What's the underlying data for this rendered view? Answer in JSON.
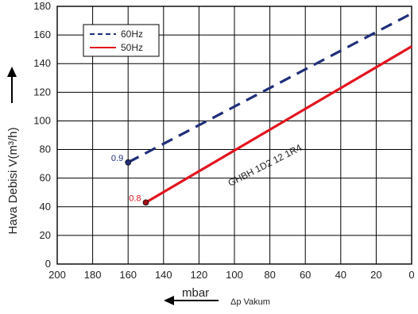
{
  "chart_data": {
    "type": "line",
    "title": "",
    "xlabel": "mbar",
    "xlabel_secondary": "Δp Vakum",
    "ylabel": "Hava Debisi V(m³/h)",
    "xlim": [
      200,
      0
    ],
    "ylim": [
      0,
      180
    ],
    "x_reversed": true,
    "x_ticks": [
      200,
      180,
      160,
      140,
      120,
      100,
      80,
      60,
      40,
      20,
      0
    ],
    "y_ticks": [
      0,
      20,
      40,
      60,
      80,
      100,
      120,
      140,
      160,
      180
    ],
    "grid": true,
    "legend_position": "top-left",
    "series": [
      {
        "name": "60Hz",
        "color": "#1f2f7a",
        "style": "dashed",
        "x": [
          160,
          0
        ],
        "y": [
          71,
          175
        ],
        "start_label": "0.9",
        "start_label_color": "#1f2f7a"
      },
      {
        "name": "50Hz",
        "color": "#e3141e",
        "style": "solid",
        "x": [
          150,
          0
        ],
        "y": [
          43,
          152
        ],
        "start_label": "0.8",
        "start_label_color": "#e3141e"
      }
    ],
    "annotations": [
      {
        "text": "GHBH 1D2 12 1R4",
        "x": 82,
        "y": 67,
        "rotation": -27
      }
    ]
  }
}
